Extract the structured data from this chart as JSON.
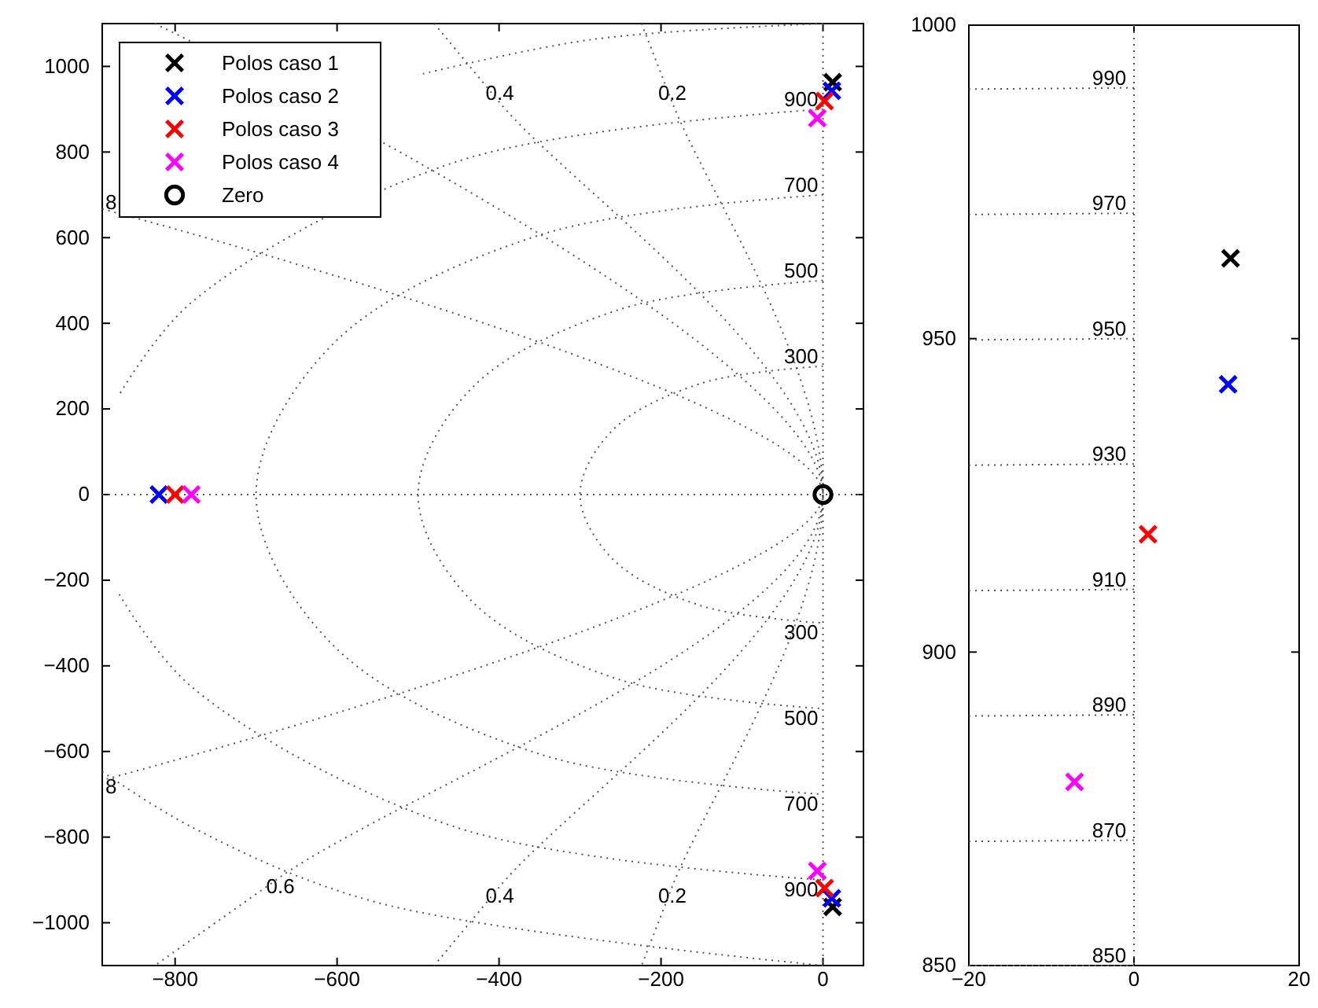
{
  "chart_data": [
    {
      "type": "scatter",
      "xlim": [
        -890,
        50
      ],
      "ylim": [
        -1100,
        1100
      ],
      "xticks": [
        -800,
        -600,
        -400,
        -200,
        0
      ],
      "yticks": [
        -1000,
        -800,
        -600,
        -400,
        -200,
        0,
        200,
        400,
        600,
        800,
        1000
      ],
      "legend": "top left",
      "series": [
        {
          "type": "line",
          "color": "#555555",
          "line_style": "dotted",
          "marker": "none",
          "x": [
            0,
            -150,
            -260,
            -300,
            -260,
            -150,
            0
          ],
          "values": [
            300,
            260,
            150,
            0,
            -150,
            -260,
            -300
          ]
        },
        {
          "type": "line",
          "color": "#555555",
          "line_style": "dotted",
          "marker": "none",
          "x": [
            0,
            -250,
            -433,
            -500,
            -433,
            -250,
            0
          ],
          "values": [
            500,
            433,
            250,
            0,
            -250,
            -433,
            -500
          ]
        },
        {
          "type": "line",
          "color": "#555555",
          "line_style": "dotted",
          "marker": "none",
          "x": [
            0,
            -350,
            -606,
            -700,
            -606,
            -350,
            0
          ],
          "values": [
            700,
            606,
            350,
            0,
            -350,
            -606,
            -700
          ]
        },
        {
          "type": "line",
          "color": "#555555",
          "line_style": "dotted",
          "marker": "none",
          "x": [
            0,
            -450,
            -779,
            -869,
            null,
            -869,
            -779,
            -450,
            0
          ],
          "values": [
            900,
            779,
            450,
            233,
            null,
            -233,
            -450,
            -779,
            -900
          ]
        },
        {
          "type": "line",
          "color": "#555555",
          "line_style": "dotted",
          "marker": "none",
          "x": [
            0,
            -285,
            -500,
            null,
            -890,
            -778,
            -550,
            0
          ],
          "values": [
            1100,
            1063,
            980,
            null,
            -647,
            -778,
            -953,
            -1100
          ]
        },
        {
          "type": "line",
          "color": "#555555",
          "line_style": "dotted",
          "marker": "none",
          "x": [
            -224,
            -186,
            0,
            -186,
            -224
          ],
          "values": [
            1100,
            915,
            0,
            -915,
            -1100
          ]
        },
        {
          "type": "line",
          "color": "#555555",
          "line_style": "dotted",
          "marker": "none",
          "x": [
            -480,
            -399,
            0,
            -399,
            -480
          ],
          "values": [
            1100,
            915,
            0,
            -915,
            -1100
          ]
        },
        {
          "type": "line",
          "color": "#555555",
          "line_style": "dotted",
          "marker": "none",
          "x": [
            -825,
            0,
            -670,
            -825
          ],
          "values": [
            1100,
            0,
            -893,
            -1100
          ]
        },
        {
          "type": "line",
          "color": "#555555",
          "line_style": "dotted",
          "marker": "none",
          "x": [
            -890,
            0,
            -890
          ],
          "values": [
            667,
            0,
            -667
          ]
        },
        {
          "name": "Polos caso 1",
          "color": "#000000",
          "marker": "cross",
          "x": [
            12,
            12
          ],
          "values": [
            963,
            -963
          ]
        },
        {
          "name": "Polos caso 2",
          "color": "#0000ff",
          "marker": "cross",
          "x": [
            -820,
            11,
            11
          ],
          "values": [
            0,
            943,
            -943
          ]
        },
        {
          "name": "Polos caso 3",
          "color": "#ff0000",
          "marker": "cross",
          "x": [
            -800,
            2,
            2
          ],
          "values": [
            0,
            919,
            -919
          ]
        },
        {
          "name": "Polos caso 4",
          "color": "#ff00ff",
          "marker": "cross",
          "x": [
            -780,
            -7,
            -7
          ],
          "values": [
            0,
            879,
            -879
          ]
        },
        {
          "name": "Zero",
          "color": "#000000",
          "marker": "circle",
          "x": [
            0
          ],
          "values": [
            0
          ]
        }
      ],
      "ref_lines": [
        {
          "axis": "y",
          "value": 0,
          "color": "#555555",
          "line_style": "dotted"
        },
        {
          "axis": "x",
          "value": 0,
          "color": "#555555",
          "line_style": "dotted"
        }
      ],
      "annotations": [
        {
          "text": "0.2",
          "x": -186,
          "y": 915
        },
        {
          "text": "0.4",
          "x": -399,
          "y": 915
        },
        {
          "text": "8",
          "x": -879,
          "y": 659
        },
        {
          "text": "900",
          "x": -27,
          "y": 900
        },
        {
          "text": "700",
          "x": -27,
          "y": 699
        },
        {
          "text": "500",
          "x": -27,
          "y": 499
        },
        {
          "text": "300",
          "x": -27,
          "y": 299
        },
        {
          "text": "300",
          "x": -27,
          "y": -299
        },
        {
          "text": "500",
          "x": -27,
          "y": -499
        },
        {
          "text": "700",
          "x": -27,
          "y": -699
        },
        {
          "text": "900",
          "x": -27,
          "y": -900
        },
        {
          "text": "0.2",
          "x": -186,
          "y": -915
        },
        {
          "text": "0.4",
          "x": -399,
          "y": -915
        },
        {
          "text": "0.6",
          "x": -670,
          "y": -893
        },
        {
          "text": "8",
          "x": -879,
          "y": -659
        }
      ]
    },
    {
      "type": "scatter",
      "xlim": [
        -20,
        20
      ],
      "ylim": [
        850,
        1000
      ],
      "xticks": [
        -20,
        0,
        20
      ],
      "yticks": [
        850,
        900,
        950,
        1000
      ],
      "series": [
        {
          "type": "line",
          "color": "#555555",
          "line_style": "dotted",
          "marker": "none",
          "x": [
            -20,
            0
          ],
          "values": [
            850,
            850
          ]
        },
        {
          "type": "line",
          "color": "#555555",
          "line_style": "dotted",
          "marker": "none",
          "x": [
            -20,
            0
          ],
          "values": [
            869.8,
            870
          ]
        },
        {
          "type": "line",
          "color": "#555555",
          "line_style": "dotted",
          "marker": "none",
          "x": [
            -20,
            0
          ],
          "values": [
            889.8,
            890
          ]
        },
        {
          "type": "line",
          "color": "#555555",
          "line_style": "dotted",
          "marker": "none",
          "x": [
            -20,
            0
          ],
          "values": [
            909.8,
            910
          ]
        },
        {
          "type": "line",
          "color": "#555555",
          "line_style": "dotted",
          "marker": "none",
          "x": [
            -20,
            0
          ],
          "values": [
            929.8,
            930
          ]
        },
        {
          "type": "line",
          "color": "#555555",
          "line_style": "dotted",
          "marker": "none",
          "x": [
            -20,
            0
          ],
          "values": [
            949.8,
            950
          ]
        },
        {
          "type": "line",
          "color": "#555555",
          "line_style": "dotted",
          "marker": "none",
          "x": [
            -20,
            0
          ],
          "values": [
            969.8,
            970
          ]
        },
        {
          "type": "line",
          "color": "#555555",
          "line_style": "dotted",
          "marker": "none",
          "x": [
            -20,
            0
          ],
          "values": [
            989.8,
            990
          ]
        },
        {
          "color": "#000000",
          "marker": "cross",
          "x": [
            11.7
          ],
          "values": [
            962.8
          ]
        },
        {
          "color": "#0000ff",
          "marker": "cross",
          "x": [
            11.4
          ],
          "values": [
            942.7
          ]
        },
        {
          "color": "#ff0000",
          "marker": "cross",
          "x": [
            1.7
          ],
          "values": [
            918.8
          ]
        },
        {
          "color": "#ff00ff",
          "marker": "cross",
          "x": [
            -7.2
          ],
          "values": [
            879.3
          ]
        }
      ],
      "ref_lines": [
        {
          "axis": "x",
          "value": 0,
          "color": "#555555",
          "line_style": "dotted"
        }
      ],
      "annotations": [
        {
          "text": "990",
          "x": -3,
          "y": 990
        },
        {
          "text": "970",
          "x": -3,
          "y": 970
        },
        {
          "text": "950",
          "x": -3,
          "y": 950
        },
        {
          "text": "930",
          "x": -3,
          "y": 930
        },
        {
          "text": "910",
          "x": -3,
          "y": 910
        },
        {
          "text": "890",
          "x": -3,
          "y": 890
        },
        {
          "text": "870",
          "x": -3,
          "y": 870
        },
        {
          "text": "850",
          "x": -3,
          "y": 850
        }
      ]
    }
  ]
}
